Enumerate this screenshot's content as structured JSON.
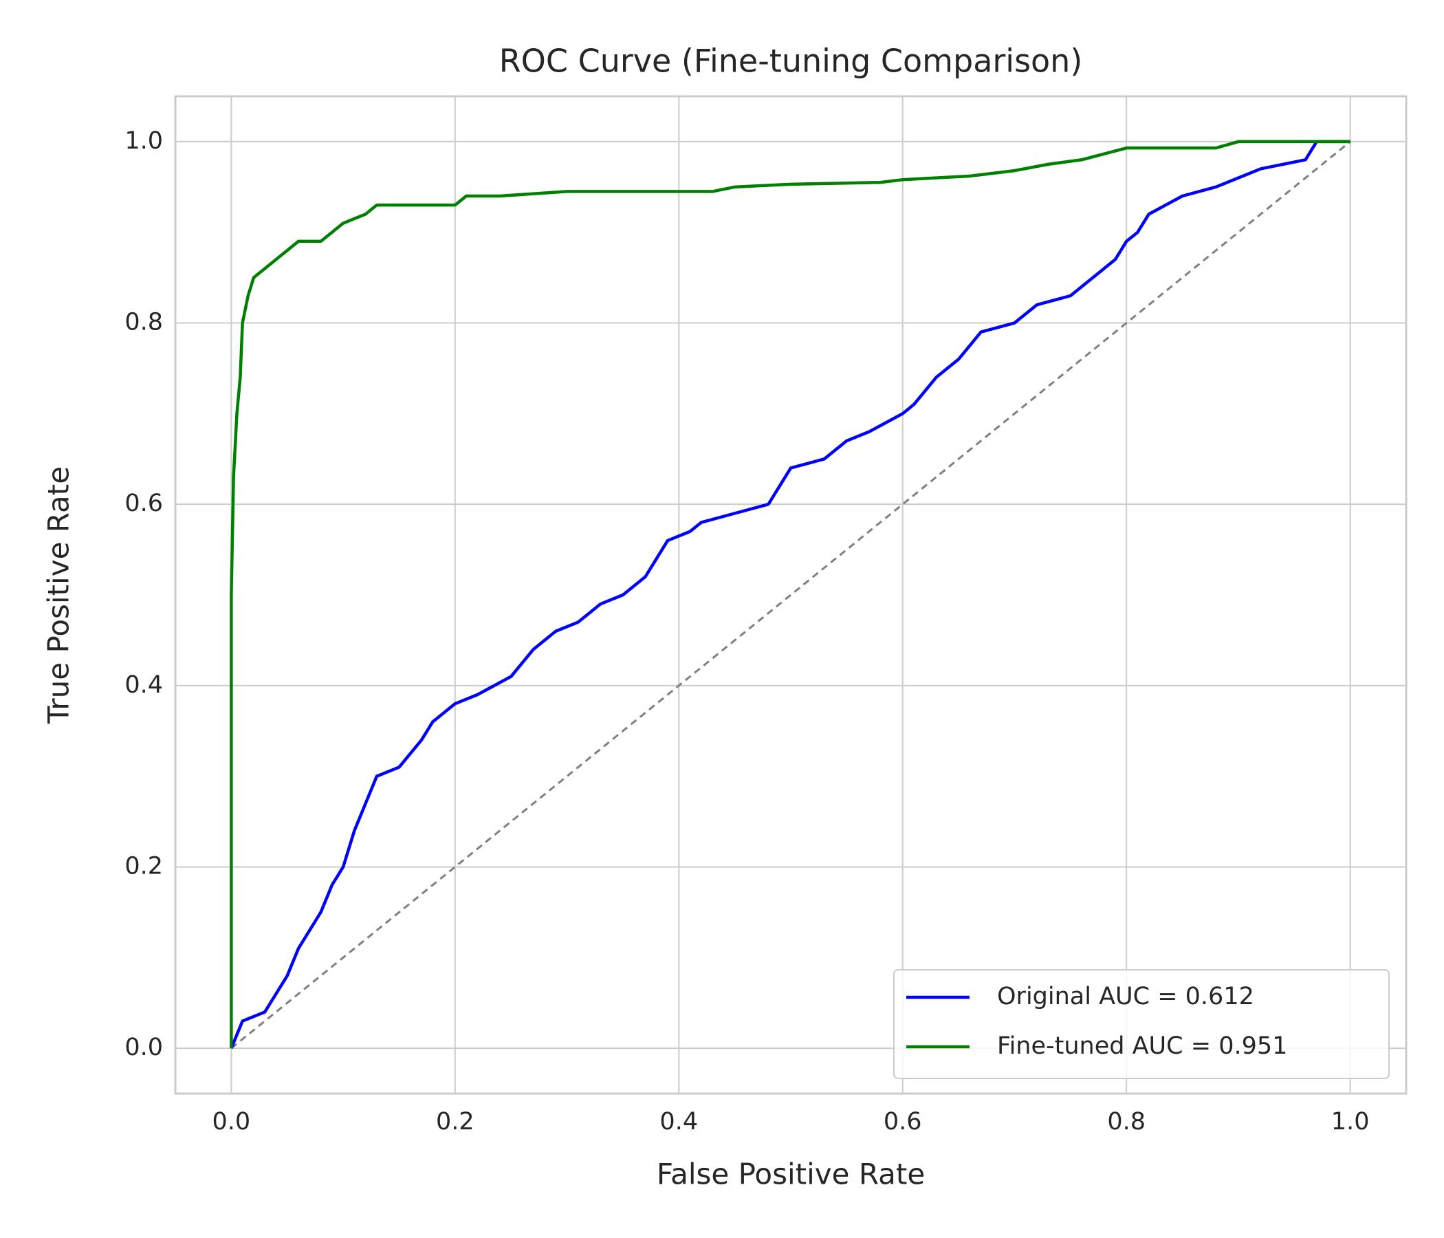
{
  "chart_data": {
    "type": "line",
    "title": "ROC Curve (Fine-tuning Comparison)",
    "xlabel": "False Positive Rate",
    "ylabel": "True Positive Rate",
    "xlim": [
      -0.05,
      1.05
    ],
    "ylim": [
      -0.05,
      1.05
    ],
    "xticks": [
      {
        "value": 0,
        "label": "0.0"
      },
      0.2,
      0.4,
      0.6,
      0.8,
      {
        "value": 1,
        "label": "1.0"
      }
    ],
    "yticks": [
      {
        "value": 0,
        "label": "0.0"
      },
      0.2,
      0.4,
      0.6,
      0.8,
      {
        "value": 1,
        "label": "1.0"
      }
    ],
    "grid": true,
    "legend": "lower right",
    "series": [
      {
        "name": "Original AUC = 0.612",
        "color": "#0000ff",
        "x": [
          0,
          0.01,
          0.03,
          0.04,
          0.05,
          0.06,
          0.07,
          0.08,
          0.09,
          0.1,
          0.11,
          0.12,
          0.13,
          0.15,
          0.17,
          0.18,
          0.2,
          0.22,
          0.25,
          0.27,
          0.29,
          0.31,
          0.33,
          0.35,
          0.37,
          0.38,
          0.39,
          0.41,
          0.42,
          0.45,
          0.48,
          0.49,
          0.5,
          0.53,
          0.55,
          0.57,
          0.6,
          0.61,
          0.63,
          0.65,
          0.67,
          0.7,
          0.72,
          0.75,
          0.77,
          0.79,
          0.8,
          0.81,
          0.82,
          0.85,
          0.88,
          0.9,
          0.92,
          0.96,
          0.97,
          1.0
        ],
        "values": [
          0,
          0.03,
          0.04,
          0.06,
          0.08,
          0.11,
          0.13,
          0.15,
          0.18,
          0.2,
          0.24,
          0.27,
          0.3,
          0.31,
          0.34,
          0.36,
          0.38,
          0.39,
          0.41,
          0.44,
          0.46,
          0.47,
          0.49,
          0.5,
          0.52,
          0.54,
          0.56,
          0.57,
          0.58,
          0.59,
          0.6,
          0.62,
          0.64,
          0.65,
          0.67,
          0.68,
          0.7,
          0.71,
          0.74,
          0.76,
          0.79,
          0.8,
          0.82,
          0.83,
          0.85,
          0.87,
          0.89,
          0.9,
          0.92,
          0.94,
          0.95,
          0.96,
          0.97,
          0.98,
          1.0,
          1.0
        ]
      },
      {
        "name": "Fine-tuned AUC = 0.951",
        "color": "#008000",
        "x": [
          0,
          0,
          0.002,
          0.005,
          0.008,
          0.01,
          0.015,
          0.02,
          0.03,
          0.04,
          0.05,
          0.06,
          0.08,
          0.09,
          0.1,
          0.12,
          0.13,
          0.2,
          0.21,
          0.24,
          0.3,
          0.43,
          0.45,
          0.5,
          0.58,
          0.6,
          0.66,
          0.7,
          0.73,
          0.76,
          0.8,
          0.88,
          0.9,
          1.0
        ],
        "values": [
          0,
          0.5,
          0.63,
          0.7,
          0.74,
          0.8,
          0.83,
          0.85,
          0.86,
          0.87,
          0.88,
          0.89,
          0.89,
          0.9,
          0.91,
          0.92,
          0.93,
          0.93,
          0.94,
          0.94,
          0.945,
          0.945,
          0.95,
          0.953,
          0.955,
          0.958,
          0.962,
          0.968,
          0.975,
          0.98,
          0.993,
          0.993,
          1.0,
          1.0
        ]
      }
    ],
    "reference": {
      "x": [
        0,
        1
      ],
      "values": [
        0,
        1
      ],
      "color": "#808080"
    }
  }
}
